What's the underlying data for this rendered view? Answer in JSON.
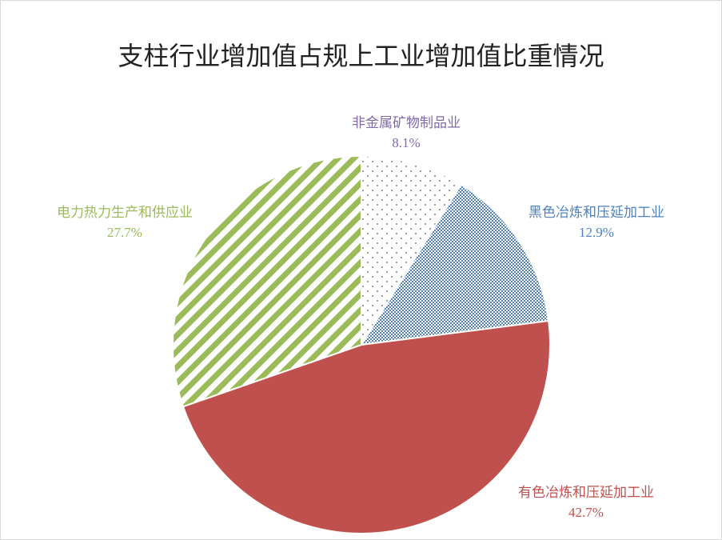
{
  "chart_data": {
    "type": "pie",
    "title": "支柱行业增加值占规上工业增加值比重情况",
    "slices": [
      {
        "label": "非金属矿物制品业",
        "value": 8.1,
        "value_text": "8.1%",
        "color": "#7f6aa8",
        "fill": "dots-gray"
      },
      {
        "label": "黑色冶炼和压延加工业",
        "value": 12.9,
        "value_text": "12.9%",
        "color": "#4f81bd",
        "fill": "crosshatch-blue"
      },
      {
        "label": "有色冶炼和压延加工业",
        "value": 42.7,
        "value_text": "42.7%",
        "color": "#c0504d",
        "fill": "solid-red"
      },
      {
        "label": "电力热力生产和供应业",
        "value": 27.7,
        "value_text": "27.7%",
        "color": "#9bbb59",
        "fill": "diagonal-stripes-green"
      }
    ]
  }
}
